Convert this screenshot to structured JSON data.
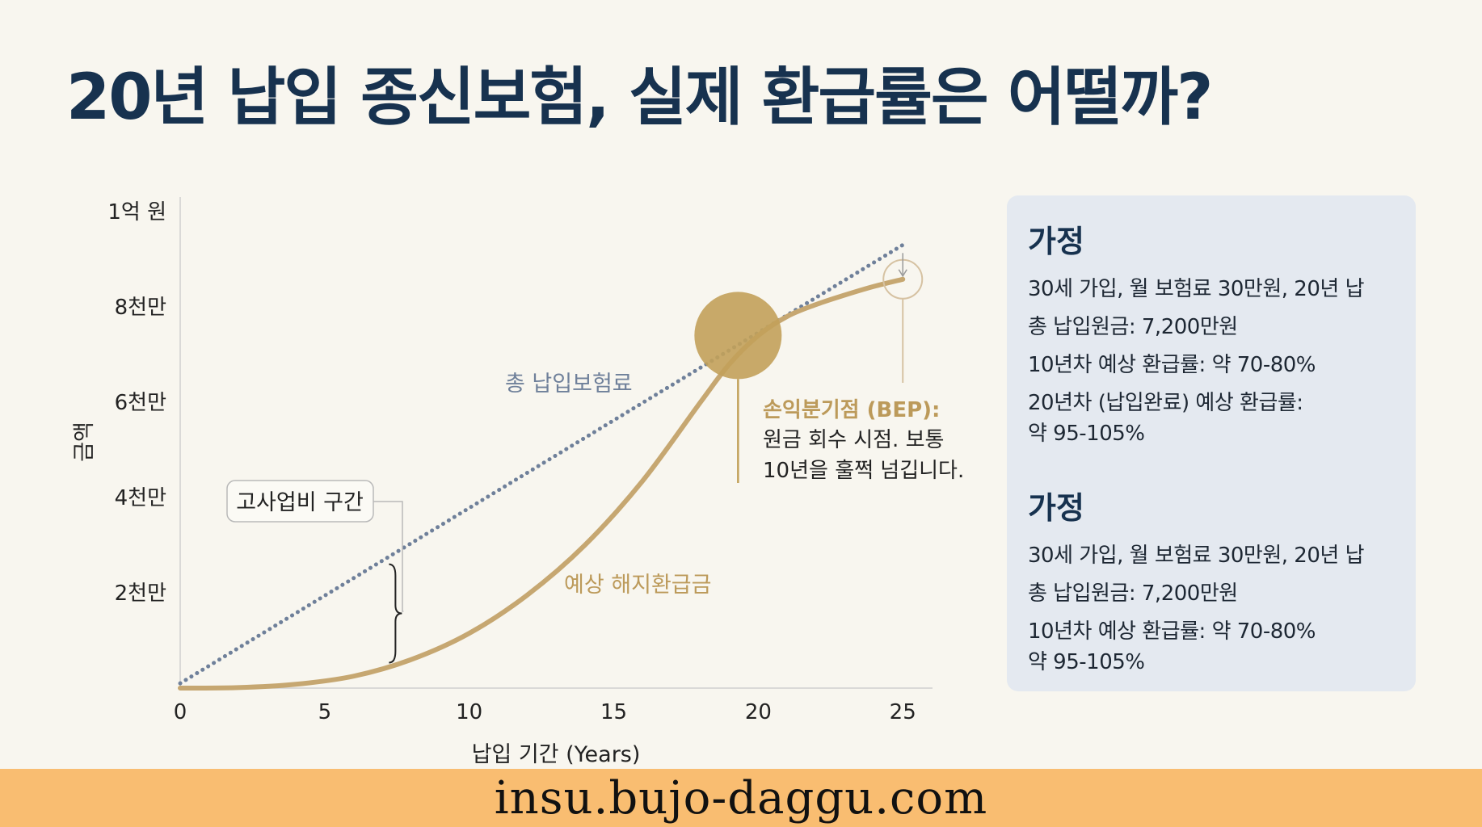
{
  "page": {
    "title": "20년 납입 종신보험, 실제 환급률은 어떨까?",
    "footer_url": "insu.bujo-daggu.com"
  },
  "chart_data": {
    "type": "line",
    "title": "",
    "xlabel": "납입 기간 (Years)",
    "ylabel": "금액",
    "xlim": [
      0,
      26
    ],
    "ylim": [
      0,
      100000000
    ],
    "x_ticks": [
      0,
      5,
      10,
      15,
      20,
      25
    ],
    "y_ticks": [
      {
        "value": 20000000,
        "label": "2천만"
      },
      {
        "value": 40000000,
        "label": "4천만"
      },
      {
        "value": 60000000,
        "label": "6천만"
      },
      {
        "value": 80000000,
        "label": "8천만"
      },
      {
        "value": 100000000,
        "label": "1억 원"
      }
    ],
    "series": [
      {
        "name": "총 납입보험료",
        "style": "dotted",
        "color": "#6f809a",
        "x": [
          0,
          25
        ],
        "y": [
          1000000,
          93000000
        ]
      },
      {
        "name": "예상 해지환급금",
        "style": "solid",
        "color": "#c6a771",
        "x": [
          0,
          2,
          4,
          6,
          8,
          10,
          12,
          14,
          16,
          18,
          19,
          20,
          21,
          22,
          23,
          24,
          25
        ],
        "y": [
          0,
          100000,
          800000,
          2500000,
          6000000,
          11500000,
          19500000,
          30000000,
          43500000,
          60000000,
          68000000,
          74000000,
          78000000,
          80500000,
          82500000,
          84300000,
          85800000
        ]
      }
    ],
    "annotations": {
      "bep": {
        "x": 19.3,
        "y": 74000000,
        "title": "손익분기점 (BEP):",
        "text_lines": [
          "원금 회수 시점. 보통",
          "10년을 훌쩍 넘깁니다."
        ]
      },
      "cost_zone": {
        "label": "고사업비 구간",
        "x": 7,
        "y_from": 5000000,
        "y_to": 26000000
      },
      "end_point": {
        "x": 25,
        "y": 85800000
      }
    },
    "grid": false,
    "legend": "none"
  },
  "panel": {
    "sections": [
      {
        "heading": "가정",
        "lines": [
          "30세 가입, 월 보험료 30만원, 20년 납",
          "총 납입원금: 7,200만원",
          "10년차 예상 환급률: 약 70-80%"
        ],
        "multi_line": [
          "20년차 (납입완료) 예상 환급률:",
          "약 95-105%"
        ]
      },
      {
        "heading": "가정",
        "lines": [
          "30세 가입, 월 보험료 30만원, 20년 납",
          "총 납입원금: 7,200만원"
        ],
        "multi_line": [
          "10년차 예상 환급률: 약 70-80%",
          "약 95-105%"
        ]
      }
    ]
  },
  "colors": {
    "background": "#f8f6ef",
    "title": "#17324f",
    "premium_line": "#6f809a",
    "refund_line": "#c6a771",
    "panel_bg": "#e4e9f0",
    "footer_bg": "#f9bd71"
  }
}
